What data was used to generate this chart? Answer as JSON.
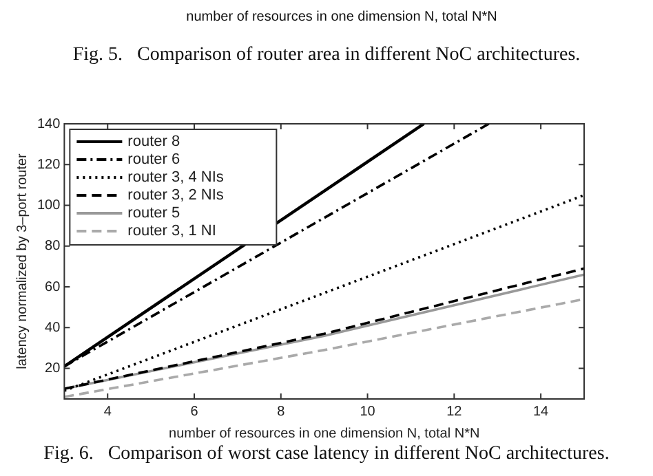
{
  "chart_data": {
    "type": "line",
    "xlabel": "number of resources in one dimension N, total N*N",
    "ylabel": "latency normalized by 3–port router",
    "xlim": [
      3,
      15
    ],
    "xticks": [
      4,
      6,
      8,
      10,
      12,
      14
    ],
    "ylim": [
      5,
      140
    ],
    "yticks": [
      20,
      40,
      60,
      80,
      100,
      120,
      140
    ],
    "grid": false,
    "legend": "top left",
    "marker": "none",
    "series": [
      {
        "name": "router 8",
        "color": "#000000",
        "line_style": "solid",
        "x": [
          3,
          11.3
        ],
        "values": [
          21,
          140
        ]
      },
      {
        "name": "router 6",
        "color": "#000000",
        "line_style": "dashdot",
        "x": [
          3,
          12.8
        ],
        "values": [
          21,
          140
        ]
      },
      {
        "name": "router 3, 4 NIs",
        "color": "#000000",
        "line_style": "dotted",
        "x": [
          3,
          15
        ],
        "values": [
          9,
          105
        ]
      },
      {
        "name": "router 3, 2 NIs",
        "color": "#000000",
        "line_style": "dashed",
        "x": [
          3,
          9,
          15
        ],
        "values": [
          10,
          37,
          69
        ]
      },
      {
        "name": "router 5",
        "color": "#999999",
        "line_style": "solid",
        "x": [
          3,
          9,
          15
        ],
        "values": [
          10,
          36,
          66
        ]
      },
      {
        "name": "router 3, 1 NI",
        "color": "#aaaaaa",
        "line_style": "dashed",
        "x": [
          3,
          9,
          15
        ],
        "values": [
          6,
          29,
          54
        ]
      }
    ],
    "annotations": [
      "number of resources in one dimension N, total N*N",
      "Fig. 5.   Comparison of router area in different NoC architectures.",
      "Fig. 6.   Comparison of worst case latency in different NoC architectures."
    ]
  }
}
